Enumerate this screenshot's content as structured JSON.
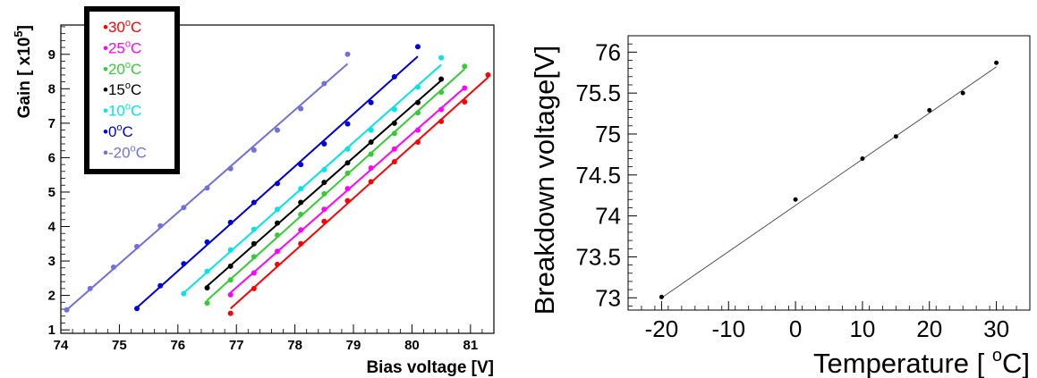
{
  "chart_data": [
    {
      "type": "line",
      "xlabel": "Bias voltage [V]",
      "ylabel": "Gain [ x10",
      "ylabel_sup": "5",
      "ylabel_close": "]",
      "xlim": [
        74,
        81.4
      ],
      "ylim": [
        0.9,
        9.85
      ],
      "xticks": [
        74,
        75,
        76,
        77,
        78,
        79,
        80,
        81
      ],
      "yticks": [
        1,
        2,
        3,
        4,
        5,
        6,
        7,
        8,
        9
      ],
      "legend": {
        "position": "top-left",
        "entries": [
          {
            "pre": "•30",
            "sup": "o",
            "post": "C",
            "color": "#ff0000"
          },
          {
            "pre": "•25",
            "sup": "o",
            "post": "C",
            "color": "#ff00ff"
          },
          {
            "pre": "•20",
            "sup": "o",
            "post": "C",
            "color": "#33cc33"
          },
          {
            "pre": "•15",
            "sup": "o",
            "post": "C",
            "color": "#000000"
          },
          {
            "pre": "•10",
            "sup": "o",
            "post": "C",
            "color": "#00e5e5"
          },
          {
            "pre": "•0",
            "sup": "o",
            "post": "C",
            "color": "#0000dd"
          },
          {
            "pre": "•-20",
            "sup": "o",
            "post": "C",
            "color": "#7070e0"
          }
        ]
      },
      "series": [
        {
          "temperature": 30,
          "color": "#ff0000",
          "x": [
            76.9,
            77.3,
            77.7,
            78.1,
            78.5,
            78.9,
            79.3,
            79.7,
            80.1,
            80.5,
            80.9,
            81.3
          ],
          "y": [
            1.48,
            2.2,
            2.9,
            3.5,
            4.15,
            4.75,
            5.3,
            5.88,
            6.45,
            7.05,
            7.62,
            8.4
          ]
        },
        {
          "temperature": 25,
          "color": "#ff00ff",
          "x": [
            76.9,
            77.3,
            77.7,
            78.1,
            78.5,
            78.9,
            79.3,
            79.7,
            80.1,
            80.5,
            80.9
          ],
          "y": [
            2.02,
            2.65,
            3.28,
            3.9,
            4.5,
            5.1,
            5.7,
            6.25,
            6.8,
            7.4,
            8.02
          ]
        },
        {
          "temperature": 20,
          "color": "#33cc33",
          "x": [
            76.5,
            76.9,
            77.3,
            77.7,
            78.1,
            78.5,
            78.9,
            79.3,
            79.7,
            80.1,
            80.5,
            80.9
          ],
          "y": [
            1.78,
            2.45,
            3.12,
            3.75,
            4.35,
            4.95,
            5.55,
            6.1,
            6.7,
            7.3,
            7.9,
            8.65
          ]
        },
        {
          "temperature": 15,
          "color": "#000000",
          "x": [
            76.5,
            76.9,
            77.3,
            77.7,
            78.1,
            78.5,
            78.9,
            79.3,
            79.7,
            80.1,
            80.5
          ],
          "y": [
            2.22,
            2.85,
            3.5,
            4.1,
            4.7,
            5.28,
            5.85,
            6.45,
            7.0,
            7.6,
            8.28
          ]
        },
        {
          "temperature": 10,
          "color": "#00e5e5",
          "x": [
            76.1,
            76.5,
            76.9,
            77.3,
            77.7,
            78.1,
            78.5,
            78.9,
            79.3,
            79.7,
            80.1,
            80.5
          ],
          "y": [
            2.05,
            2.7,
            3.32,
            3.92,
            4.5,
            5.1,
            5.65,
            6.25,
            6.8,
            7.4,
            8.05,
            8.9
          ]
        },
        {
          "temperature": 0,
          "color": "#0000dd",
          "x": [
            75.3,
            75.7,
            76.1,
            76.5,
            76.9,
            77.3,
            77.7,
            78.1,
            78.5,
            78.9,
            79.3,
            79.7,
            80.1
          ],
          "y": [
            1.62,
            2.28,
            2.92,
            3.55,
            4.12,
            4.7,
            5.25,
            5.8,
            6.4,
            6.98,
            7.6,
            8.35,
            9.22
          ]
        },
        {
          "temperature": -20,
          "color": "#7070e0",
          "x": [
            74.1,
            74.5,
            74.9,
            75.3,
            75.7,
            76.1,
            76.5,
            76.9,
            77.3,
            77.7,
            78.1,
            78.5,
            78.9
          ],
          "y": [
            1.58,
            2.2,
            2.82,
            3.42,
            4.02,
            4.55,
            5.12,
            5.68,
            6.22,
            6.8,
            7.42,
            8.15,
            9.0
          ]
        }
      ]
    },
    {
      "type": "scatter",
      "xlabel_pre": "Temperature [ ",
      "xlabel_sup": "o",
      "xlabel_post": "C]",
      "ylabel": "Breakdown voltage[V]",
      "xlim": [
        -25,
        35
      ],
      "ylim": [
        72.85,
        76.2
      ],
      "xticks": [
        -20,
        -10,
        0,
        10,
        20,
        30
      ],
      "yticks": [
        73,
        73.5,
        74,
        74.5,
        75,
        75.5,
        76
      ],
      "ytick_labels": [
        "73",
        "73.5",
        "74",
        "74.5",
        "75",
        "75.5",
        "76"
      ],
      "points": {
        "x": [
          -20,
          0,
          10,
          15,
          20,
          25,
          30
        ],
        "y": [
          73.01,
          74.2,
          74.7,
          74.97,
          75.29,
          75.5,
          75.87
        ]
      },
      "fit": {
        "x": [
          -20,
          30
        ],
        "y": [
          73.0,
          75.82
        ]
      }
    }
  ]
}
